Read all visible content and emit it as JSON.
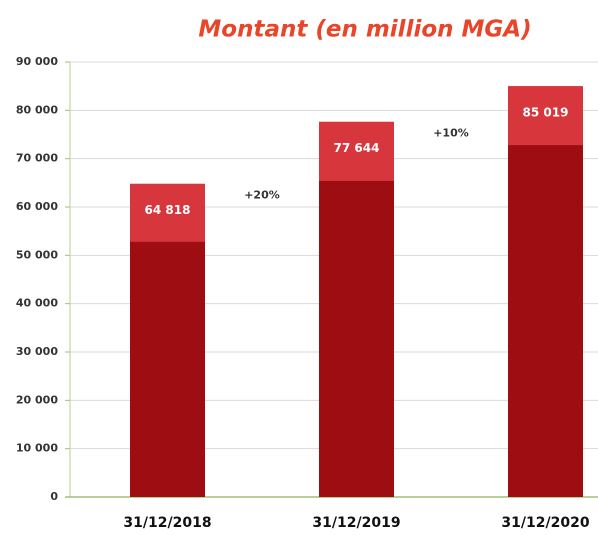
{
  "chart_data": {
    "type": "bar",
    "title": "Montant (en million MGA)",
    "categories": [
      "31/12/2018",
      "31/12/2019",
      "31/12/2020"
    ],
    "series": [
      {
        "color": "#d7363c",
        "values": [
          64818,
          77644,
          85019
        ],
        "value_labels": [
          "64 818",
          "77 644",
          "85 019"
        ]
      },
      {
        "color": "#9e0d12",
        "values": [
          52800,
          65400,
          72800
        ]
      }
    ],
    "annotations": [
      "+20%",
      "+10%"
    ],
    "ylim": [
      0,
      90000
    ],
    "yticks": [
      0,
      {
        "value": 10000,
        "label": "10 000"
      },
      {
        "value": 20000,
        "label": "20 000"
      },
      {
        "value": 30000,
        "label": "30 000"
      },
      {
        "value": 40000,
        "label": "40 000"
      },
      {
        "value": 50000,
        "label": "50 000"
      },
      {
        "value": 60000,
        "label": "60 000"
      },
      {
        "value": 70000,
        "label": "70 000"
      },
      {
        "value": 80000,
        "label": "80 000"
      },
      {
        "value": 90000,
        "label": "90 000"
      }
    ],
    "grid": true
  }
}
